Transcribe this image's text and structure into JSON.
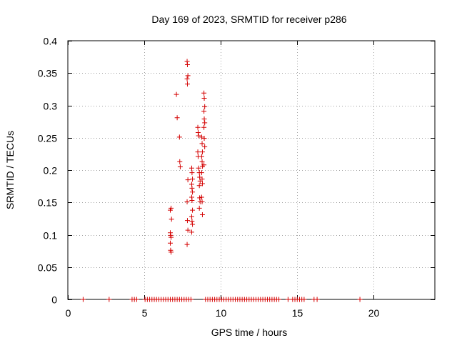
{
  "chart_data": {
    "type": "scatter",
    "title": "Day 169 of 2023, SRMTID for receiver p286",
    "xlabel": "GPS time / hours",
    "ylabel": "SRMTID / TECUs",
    "xlim": [
      0,
      24
    ],
    "ylim": [
      0,
      0.4
    ],
    "xticks": [
      0,
      5,
      10,
      15,
      20
    ],
    "xtick_labels": [
      "0",
      "5",
      "10",
      "15",
      "20"
    ],
    "yticks": [
      0,
      0.05,
      0.1,
      0.15,
      0.2,
      0.25,
      0.3,
      0.35,
      0.4
    ],
    "ytick_labels": [
      "0",
      "0.05",
      "0.1",
      "0.15",
      "0.2",
      "0.25",
      "0.3",
      "0.35",
      "0.4"
    ],
    "grid": true,
    "marker": "+",
    "color": "#d40000",
    "series": [
      {
        "name": "SRMTID",
        "points": [
          [
            1.0,
            0
          ],
          [
            2.7,
            0
          ],
          [
            4.2,
            0
          ],
          [
            4.35,
            0
          ],
          [
            4.5,
            0
          ],
          [
            5.05,
            0
          ],
          [
            5.2,
            0
          ],
          [
            5.35,
            0
          ],
          [
            5.5,
            0
          ],
          [
            5.65,
            0
          ],
          [
            5.8,
            0
          ],
          [
            5.95,
            0
          ],
          [
            6.1,
            0
          ],
          [
            6.25,
            0
          ],
          [
            6.4,
            0
          ],
          [
            6.55,
            0
          ],
          [
            6.7,
            0
          ],
          [
            6.85,
            0
          ],
          [
            7.0,
            0
          ],
          [
            7.15,
            0
          ],
          [
            7.3,
            0
          ],
          [
            7.45,
            0
          ],
          [
            7.6,
            0
          ],
          [
            7.75,
            0
          ],
          [
            7.9,
            0
          ],
          [
            8.05,
            0
          ],
          [
            9.0,
            0
          ],
          [
            9.15,
            0
          ],
          [
            9.3,
            0
          ],
          [
            9.45,
            0
          ],
          [
            9.6,
            0
          ],
          [
            9.75,
            0
          ],
          [
            9.9,
            0
          ],
          [
            10.05,
            0
          ],
          [
            10.2,
            0
          ],
          [
            10.35,
            0
          ],
          [
            10.5,
            0
          ],
          [
            10.65,
            0
          ],
          [
            10.8,
            0
          ],
          [
            10.95,
            0
          ],
          [
            11.1,
            0
          ],
          [
            11.25,
            0
          ],
          [
            11.4,
            0
          ],
          [
            11.55,
            0
          ],
          [
            11.7,
            0
          ],
          [
            11.85,
            0
          ],
          [
            12.0,
            0
          ],
          [
            12.15,
            0
          ],
          [
            12.3,
            0
          ],
          [
            12.45,
            0
          ],
          [
            12.6,
            0
          ],
          [
            12.75,
            0
          ],
          [
            12.9,
            0
          ],
          [
            13.05,
            0
          ],
          [
            13.2,
            0
          ],
          [
            13.35,
            0
          ],
          [
            13.5,
            0
          ],
          [
            13.65,
            0
          ],
          [
            13.8,
            0
          ],
          [
            14.4,
            0
          ],
          [
            14.7,
            0
          ],
          [
            14.85,
            0
          ],
          [
            15.0,
            0
          ],
          [
            15.15,
            0
          ],
          [
            15.3,
            0
          ],
          [
            15.45,
            0
          ],
          [
            16.1,
            0
          ],
          [
            16.3,
            0
          ],
          [
            19.1,
            0
          ],
          [
            6.7,
            0.138
          ],
          [
            6.75,
            0.141
          ],
          [
            6.7,
            0.103
          ],
          [
            6.72,
            0.099
          ],
          [
            6.75,
            0.096
          ],
          [
            6.7,
            0.087
          ],
          [
            6.72,
            0.076
          ],
          [
            6.75,
            0.073
          ],
          [
            6.78,
            0.124
          ],
          [
            7.1,
            0.317
          ],
          [
            7.15,
            0.281
          ],
          [
            7.3,
            0.251
          ],
          [
            7.32,
            0.213
          ],
          [
            7.35,
            0.205
          ],
          [
            7.8,
            0.368
          ],
          [
            7.82,
            0.363
          ],
          [
            7.85,
            0.346
          ],
          [
            7.8,
            0.341
          ],
          [
            7.82,
            0.333
          ],
          [
            7.85,
            0.185
          ],
          [
            7.8,
            0.151
          ],
          [
            7.82,
            0.122
          ],
          [
            7.85,
            0.107
          ],
          [
            7.8,
            0.085
          ],
          [
            8.1,
            0.203
          ],
          [
            8.12,
            0.196
          ],
          [
            8.15,
            0.186
          ],
          [
            8.1,
            0.178
          ],
          [
            8.12,
            0.172
          ],
          [
            8.15,
            0.166
          ],
          [
            8.1,
            0.158
          ],
          [
            8.12,
            0.153
          ],
          [
            8.15,
            0.138
          ],
          [
            8.1,
            0.128
          ],
          [
            8.12,
            0.121
          ],
          [
            8.15,
            0.116
          ],
          [
            8.1,
            0.104
          ],
          [
            8.5,
            0.266
          ],
          [
            8.52,
            0.258
          ],
          [
            8.55,
            0.253
          ],
          [
            8.5,
            0.228
          ],
          [
            8.52,
            0.221
          ],
          [
            8.55,
            0.203
          ],
          [
            8.6,
            0.196
          ],
          [
            8.62,
            0.189
          ],
          [
            8.65,
            0.183
          ],
          [
            8.6,
            0.176
          ],
          [
            8.62,
            0.157
          ],
          [
            8.65,
            0.151
          ],
          [
            8.6,
            0.141
          ],
          [
            8.75,
            0.251
          ],
          [
            8.78,
            0.241
          ],
          [
            8.8,
            0.228
          ],
          [
            8.75,
            0.221
          ],
          [
            8.78,
            0.213
          ],
          [
            8.8,
            0.206
          ],
          [
            8.75,
            0.196
          ],
          [
            8.78,
            0.186
          ],
          [
            8.8,
            0.179
          ],
          [
            8.75,
            0.158
          ],
          [
            8.78,
            0.151
          ],
          [
            8.8,
            0.131
          ],
          [
            8.9,
            0.319
          ],
          [
            8.92,
            0.311
          ],
          [
            8.95,
            0.298
          ],
          [
            8.9,
            0.291
          ],
          [
            8.92,
            0.279
          ],
          [
            8.95,
            0.273
          ],
          [
            8.9,
            0.266
          ],
          [
            8.92,
            0.249
          ],
          [
            8.95,
            0.236
          ],
          [
            8.9,
            0.208
          ]
        ]
      }
    ]
  }
}
